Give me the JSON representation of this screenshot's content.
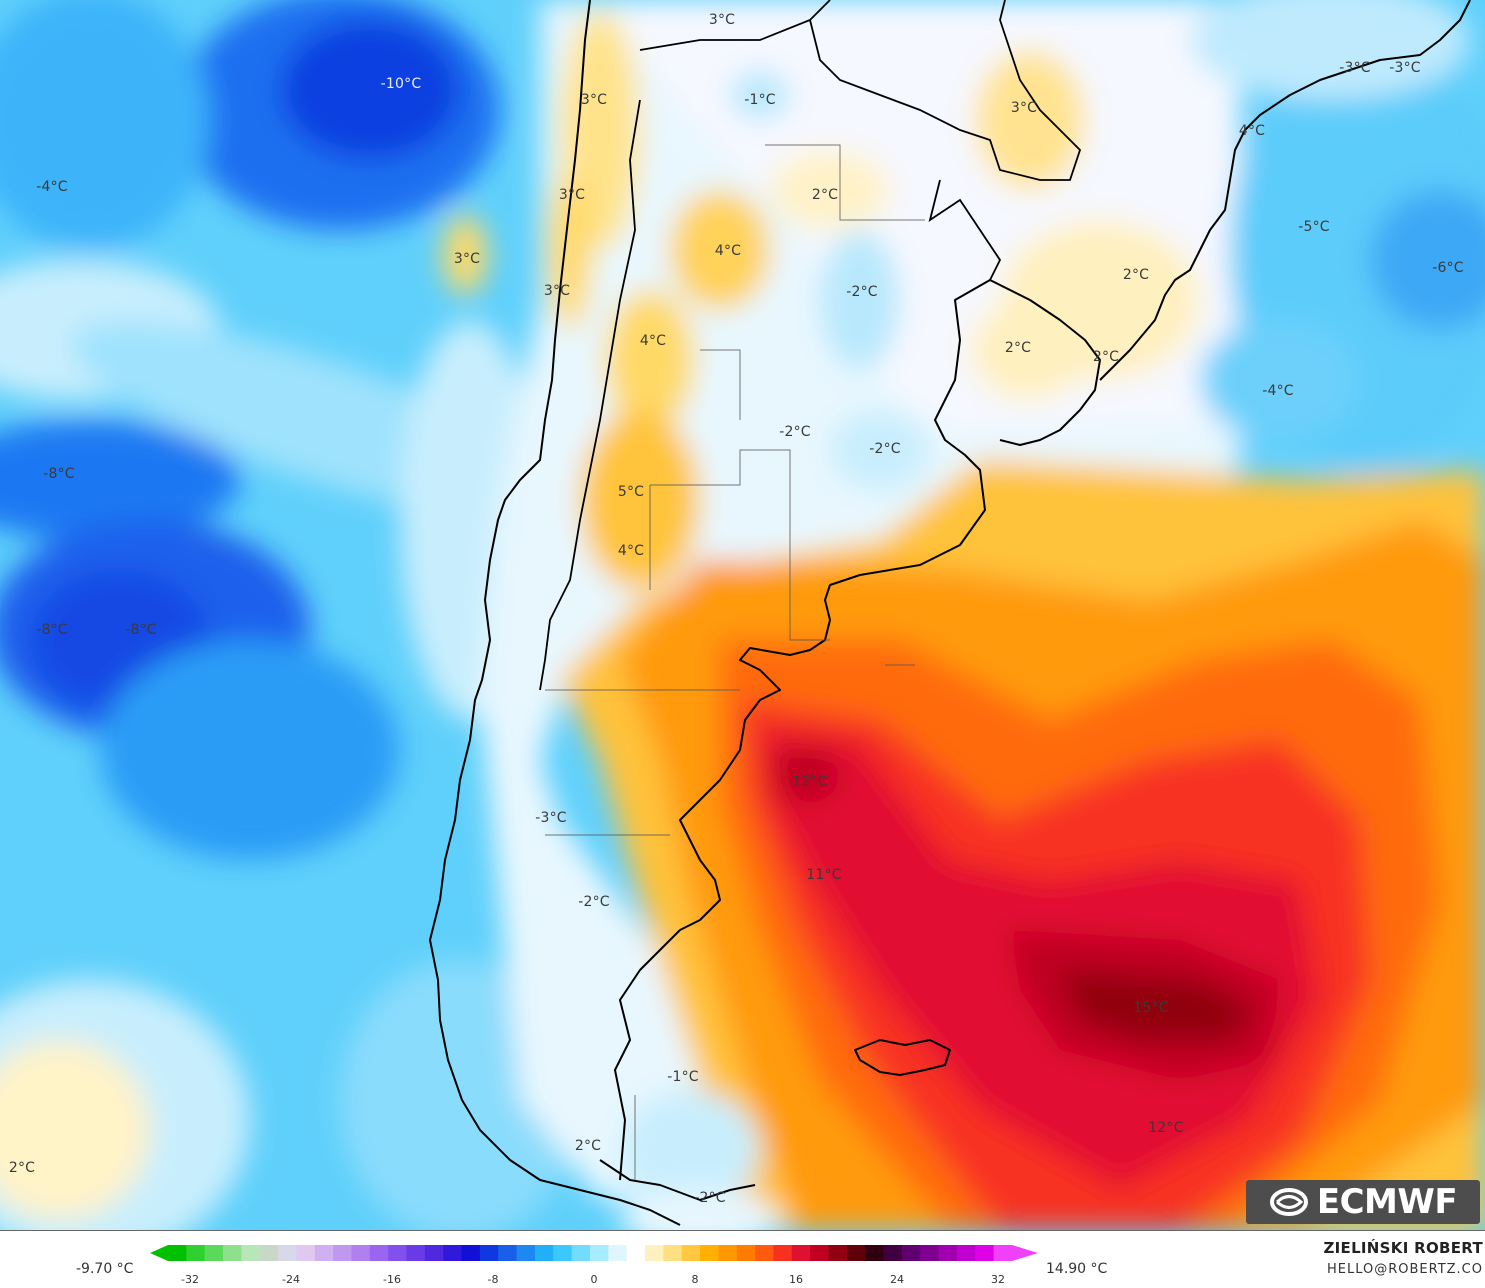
{
  "map": {
    "labels": [
      {
        "text": "-10°C"
      },
      {
        "text": "-4°C"
      },
      {
        "text": "3°C"
      },
      {
        "text": "3°C"
      },
      {
        "text": "3°C"
      },
      {
        "text": "3°C"
      },
      {
        "text": "3°C"
      },
      {
        "text": "-1°C"
      },
      {
        "text": "4°C"
      },
      {
        "text": "4°C"
      },
      {
        "text": "2°C"
      },
      {
        "text": "-2°C"
      },
      {
        "text": "3°C"
      },
      {
        "text": "4°C"
      },
      {
        "text": "2°C"
      },
      {
        "text": "-5°C"
      },
      {
        "text": "-6°C"
      },
      {
        "text": "2°C"
      },
      {
        "text": "2°C"
      },
      {
        "text": "-4°C"
      },
      {
        "text": "-3°C"
      },
      {
        "text": "-3°C"
      },
      {
        "text": "-8°C"
      },
      {
        "text": "5°C"
      },
      {
        "text": "4°C"
      },
      {
        "text": "-2°C"
      },
      {
        "text": "-2°C"
      },
      {
        "text": "-8°C"
      },
      {
        "text": "-8°C"
      },
      {
        "text": "12°C"
      },
      {
        "text": "-3°C"
      },
      {
        "text": "11°C"
      },
      {
        "text": "-2°C"
      },
      {
        "text": "15°C"
      },
      {
        "text": "-1°C"
      },
      {
        "text": "12°C"
      },
      {
        "text": "2°C"
      },
      {
        "text": "2°C"
      },
      {
        "text": "-2°C"
      }
    ]
  },
  "logo": {
    "text": "ECMWF"
  },
  "legend": {
    "min": "-9.70 °C",
    "max": "14.90 °C",
    "ticks": [
      "-32",
      "-24",
      "-16",
      "-8",
      "0",
      "8",
      "16",
      "24",
      "32"
    ],
    "colors": [
      "#00c000",
      "#2ed12e",
      "#5ad95a",
      "#8ee08e",
      "#b8e6b8",
      "#c8d8c8",
      "#d8d8e8",
      "#e0c8f0",
      "#d0b0f0",
      "#c098f0",
      "#b080f0",
      "#9a66f0",
      "#8250ec",
      "#6a3ae6",
      "#5028e0",
      "#3018dc",
      "#1010d8",
      "#1038e0",
      "#1860e8",
      "#1c88f0",
      "#20b0f8",
      "#3cc8fc",
      "#70dcfe",
      "#a8ecff",
      "#e0f6ff",
      "#ffffff",
      "#fff0c0",
      "#ffe080",
      "#ffc840",
      "#ffb000",
      "#ff9800",
      "#ff7c00",
      "#ff5a10",
      "#f83020",
      "#e01030",
      "#c00020",
      "#900010",
      "#600008",
      "#300010",
      "#400040",
      "#600070",
      "#800090",
      "#a000b0",
      "#c000d0",
      "#e000e8",
      "#f040f8"
    ]
  },
  "credit": {
    "author": "ZIELIŃSKI ROBERT",
    "email": "HELLO@ROBERTZ.CO"
  }
}
